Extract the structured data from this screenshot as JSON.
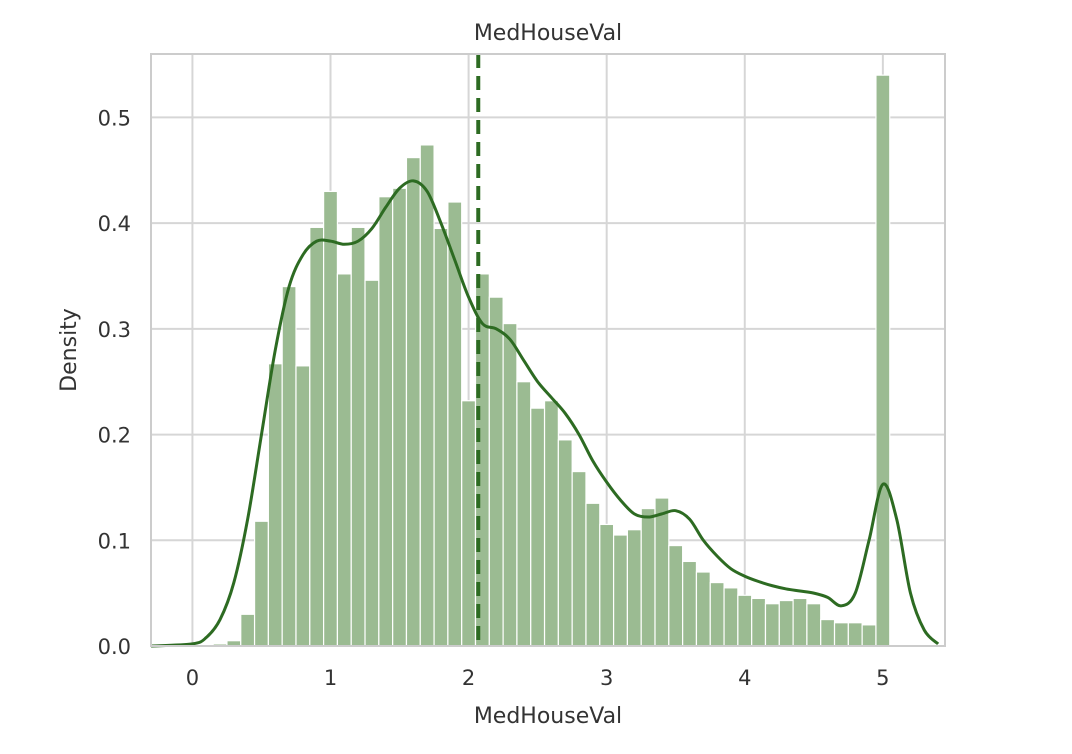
{
  "chart_data": {
    "type": "bar",
    "subtype": "histogram_with_kde",
    "title": "MedHouseVal",
    "xlabel": "MedHouseVal",
    "ylabel": "Density",
    "xlim": [
      -0.3,
      5.45
    ],
    "ylim": [
      0,
      0.56
    ],
    "xticks": [
      0,
      1,
      2,
      3,
      4,
      5
    ],
    "xtick_labels": [
      "0",
      "1",
      "2",
      "3",
      "4",
      "5"
    ],
    "yticks": [
      0.0,
      0.1,
      0.2,
      0.3,
      0.4,
      0.5
    ],
    "ytick_labels": [
      "0.0",
      "0.1",
      "0.2",
      "0.3",
      "0.4",
      "0.5"
    ],
    "grid": true,
    "bin_edges": [
      0.15,
      0.25,
      0.35,
      0.45,
      0.55,
      0.65,
      0.75,
      0.85,
      0.95,
      1.05,
      1.15,
      1.25,
      1.35,
      1.45,
      1.55,
      1.65,
      1.75,
      1.85,
      1.95,
      2.05,
      2.15,
      2.25,
      2.35,
      2.45,
      2.55,
      2.65,
      2.75,
      2.85,
      2.95,
      3.05,
      3.15,
      3.25,
      3.35,
      3.45,
      3.55,
      3.65,
      3.75,
      3.85,
      3.95,
      4.05,
      4.15,
      4.25,
      4.35,
      4.45,
      4.55,
      4.65,
      4.75,
      4.85,
      4.95,
      5.05
    ],
    "hist_density": [
      0.002,
      0.005,
      0.03,
      0.118,
      0.267,
      0.34,
      0.265,
      0.396,
      0.43,
      0.352,
      0.396,
      0.346,
      0.425,
      0.433,
      0.462,
      0.474,
      0.395,
      0.42,
      0.232,
      0.352,
      0.33,
      0.305,
      0.25,
      0.225,
      0.232,
      0.195,
      0.165,
      0.135,
      0.115,
      0.105,
      0.11,
      0.13,
      0.14,
      0.095,
      0.08,
      0.07,
      0.06,
      0.055,
      0.048,
      0.045,
      0.04,
      0.043,
      0.045,
      0.04,
      0.025,
      0.022,
      0.022,
      0.02,
      0.54
    ],
    "kde": {
      "x": [
        -0.3,
        0.0,
        0.1,
        0.2,
        0.3,
        0.4,
        0.5,
        0.6,
        0.7,
        0.8,
        0.9,
        1.0,
        1.1,
        1.2,
        1.3,
        1.4,
        1.5,
        1.6,
        1.7,
        1.8,
        1.9,
        2.0,
        2.1,
        2.2,
        2.3,
        2.4,
        2.5,
        2.6,
        2.7,
        2.8,
        2.9,
        3.0,
        3.1,
        3.2,
        3.3,
        3.4,
        3.5,
        3.6,
        3.7,
        3.8,
        3.9,
        4.0,
        4.1,
        4.2,
        4.3,
        4.4,
        4.5,
        4.6,
        4.7,
        4.8,
        4.9,
        5.0,
        5.1,
        5.2,
        5.3,
        5.4
      ],
      "y": [
        0.0,
        0.002,
        0.008,
        0.025,
        0.06,
        0.12,
        0.2,
        0.28,
        0.34,
        0.37,
        0.383,
        0.383,
        0.38,
        0.383,
        0.395,
        0.415,
        0.433,
        0.44,
        0.43,
        0.4,
        0.365,
        0.33,
        0.305,
        0.3,
        0.29,
        0.27,
        0.25,
        0.235,
        0.22,
        0.2,
        0.175,
        0.155,
        0.138,
        0.125,
        0.122,
        0.125,
        0.128,
        0.12,
        0.1,
        0.085,
        0.073,
        0.066,
        0.061,
        0.057,
        0.054,
        0.052,
        0.05,
        0.046,
        0.038,
        0.05,
        0.1,
        0.153,
        0.12,
        0.05,
        0.015,
        0.002
      ]
    },
    "mean_line_x": 2.07,
    "colors": {
      "bar_fill": "#9bbb92",
      "bar_edge": "#ffffff",
      "kde_line": "#2d6b22",
      "mean_line": "#2d6b22",
      "grid": "#d6d6d6",
      "spine": "#cccccc"
    }
  }
}
